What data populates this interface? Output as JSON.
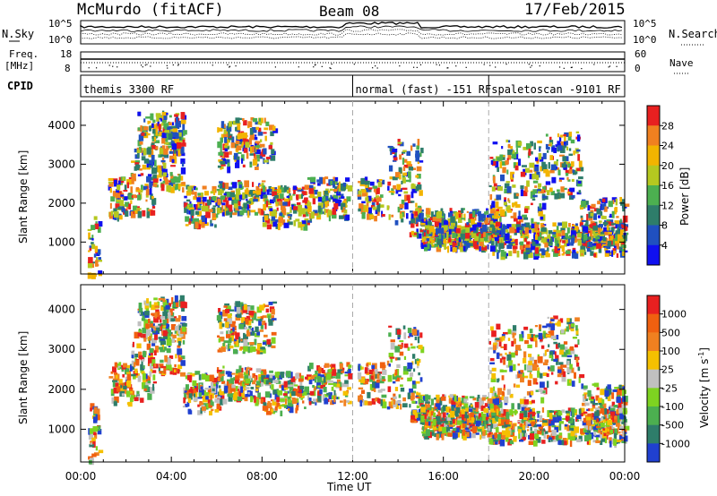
{
  "header": {
    "station": "McMurdo (fitACF)",
    "beam": "Beam 08",
    "date": "17/Feb/2015"
  },
  "top_panels": {
    "left_labels": {
      "nsky": "N.Sky",
      "freq": "Freq.",
      "freq_unit": "[MHz]",
      "cpid": "CPID"
    },
    "right_labels": {
      "nsearch": "N.Search",
      "nave": "Nave"
    },
    "noise_ticks": {
      "left_top": "10^5",
      "left_bottom": "10^0",
      "right_top": "10^5",
      "right_bottom": "10^0"
    },
    "freq_ticks": {
      "left": [
        "18",
        "8"
      ],
      "right": [
        "60",
        "0"
      ]
    },
    "cpid_modes": [
      {
        "label": "themis 3300 RF",
        "start_hour": 0
      },
      {
        "label": "normal (fast) -151 RF",
        "start_hour": 12
      },
      {
        "label": "spaletoscan -9101 RF",
        "start_hour": 18
      }
    ]
  },
  "chart_data": [
    {
      "type": "heatmap",
      "name": "power",
      "ylabel": "Slant Range [km]",
      "xlabel": "Time UT",
      "x_range_hours": [
        0,
        24
      ],
      "x_ticks": [
        "00:00",
        "04:00",
        "08:00",
        "12:00",
        "16:00",
        "20:00",
        "00:00"
      ],
      "y_range_km": [
        180,
        4620
      ],
      "y_ticks": [
        1000,
        2000,
        3000,
        4000
      ],
      "colorbar": {
        "label": "Power [dB]",
        "ticks": [
          "4",
          "8",
          "12",
          "16",
          "20",
          "24",
          "28"
        ],
        "colors": [
          "#1010f0",
          "#2050c0",
          "#2e7d6a",
          "#4caf50",
          "#b5c820",
          "#f2b400",
          "#f08020",
          "#e82020"
        ]
      }
    },
    {
      "type": "heatmap",
      "name": "velocity",
      "ylabel": "Slant Range [km]",
      "xlabel": "Time UT",
      "x_range_hours": [
        0,
        24
      ],
      "x_ticks": [
        "00:00",
        "04:00",
        "08:00",
        "12:00",
        "16:00",
        "20:00",
        "00:00"
      ],
      "y_range_km": [
        180,
        4620
      ],
      "y_ticks": [
        1000,
        2000,
        3000,
        4000
      ],
      "colorbar": {
        "label": "Velocity [m s",
        "label_sup": "-1",
        "label_close": "]",
        "ticks": [
          "1000",
          "500",
          "100",
          "25",
          "-25",
          "-100",
          "-500",
          "-1000"
        ],
        "colors": [
          "#2040d0",
          "#2e7d6a",
          "#4caf50",
          "#7ed321",
          "#c0c0c0",
          "#f5c000",
          "#f08020",
          "#f06010",
          "#e82020"
        ]
      }
    }
  ],
  "x_axis": {
    "title": "Time UT"
  }
}
